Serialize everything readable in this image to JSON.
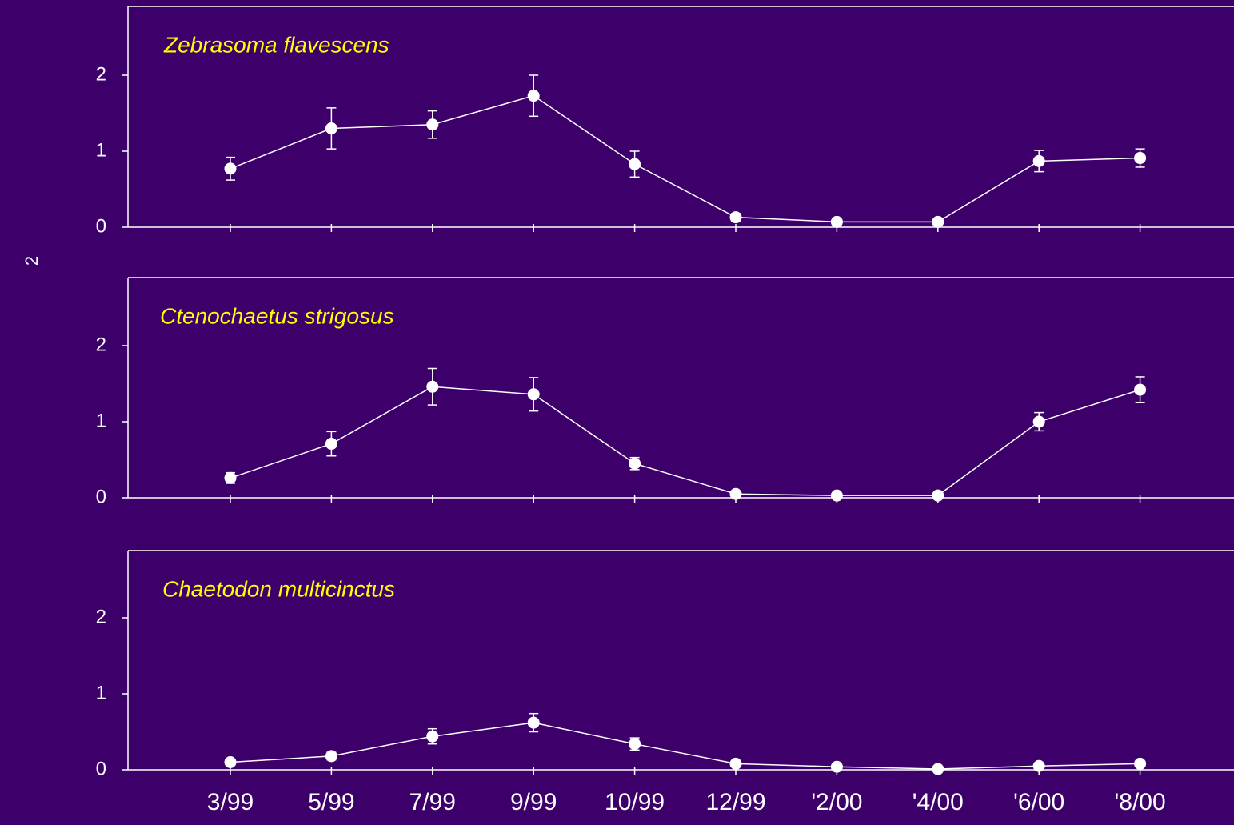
{
  "colors": {
    "background": "#3d006b",
    "panel_border": "#ffffff",
    "series": "#ffffff",
    "title": "#ffff00"
  },
  "y_axis_label_fragment": "2",
  "chart_data": [
    {
      "type": "line",
      "title": "Zebrasoma flavescens",
      "categories": [
        "3/99",
        "5/99",
        "7/99",
        "9/99",
        "10/99",
        "12/99",
        "'2/00",
        "'4/00",
        "'6/00",
        "'8/00"
      ],
      "values": [
        0.77,
        1.3,
        1.35,
        1.73,
        0.83,
        0.13,
        0.07,
        0.07,
        0.87,
        0.91
      ],
      "error": [
        0.15,
        0.27,
        0.18,
        0.27,
        0.17,
        0.05,
        0.03,
        0.03,
        0.14,
        0.12
      ],
      "ylim": [
        0,
        2.9
      ],
      "yticks": [
        0,
        1,
        2
      ],
      "grid": false,
      "xlabel": "",
      "ylabel": ""
    },
    {
      "type": "line",
      "title": "Ctenochaetus strigosus",
      "categories": [
        "3/99",
        "5/99",
        "7/99",
        "9/99",
        "10/99",
        "12/99",
        "'2/00",
        "'4/00",
        "'6/00",
        "'8/00"
      ],
      "values": [
        0.26,
        0.71,
        1.46,
        1.36,
        0.45,
        0.05,
        0.03,
        0.03,
        1.0,
        1.42
      ],
      "error": [
        0.07,
        0.16,
        0.24,
        0.22,
        0.08,
        0.02,
        0.01,
        0.01,
        0.12,
        0.17
      ],
      "ylim": [
        0,
        2.9
      ],
      "yticks": [
        0,
        1,
        2
      ],
      "grid": false,
      "xlabel": "",
      "ylabel": ""
    },
    {
      "type": "line",
      "title": "Chaetodon multicinctus",
      "categories": [
        "3/99",
        "5/99",
        "7/99",
        "9/99",
        "10/99",
        "12/99",
        "'2/00",
        "'4/00",
        "'6/00",
        "'8/00"
      ],
      "values": [
        0.1,
        0.18,
        0.44,
        0.62,
        0.34,
        0.08,
        0.04,
        0.01,
        0.05,
        0.08
      ],
      "error": [
        0.03,
        0.05,
        0.1,
        0.12,
        0.08,
        0.02,
        0.01,
        0.01,
        0.02,
        0.02
      ],
      "ylim": [
        0,
        2.9
      ],
      "yticks": [
        0,
        1,
        2
      ],
      "grid": false,
      "xlabel": "",
      "ylabel": ""
    }
  ]
}
